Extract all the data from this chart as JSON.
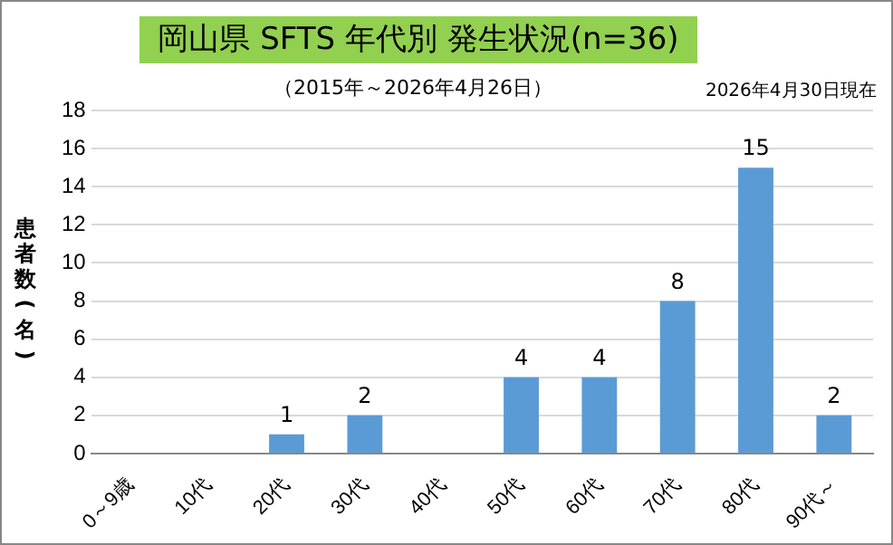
{
  "chart_data": {
    "type": "bar",
    "title": "岡山県 SFTS 年代別 発生状況(n=36)",
    "subtitle": "（2015年～2026年4月26日）",
    "annotations": [
      "2026年4月30日現在"
    ],
    "ylabel": "患者数(名)",
    "categories": [
      "0～9歳",
      "10代",
      "20代",
      "30代",
      "40代",
      "50代",
      "60代",
      "70代",
      "80代",
      "90代～"
    ],
    "values": [
      0,
      0,
      1,
      2,
      0,
      4,
      4,
      8,
      15,
      2
    ],
    "value_labels": [
      null,
      null,
      "1",
      "2",
      null,
      "4",
      "4",
      "8",
      "15",
      "2"
    ],
    "color": "#5b9bd5",
    "ylim": [
      0,
      18
    ],
    "yticks": [
      0,
      2,
      4,
      6,
      8,
      10,
      12,
      14,
      16,
      18
    ],
    "grid": "y",
    "legend": false
  }
}
